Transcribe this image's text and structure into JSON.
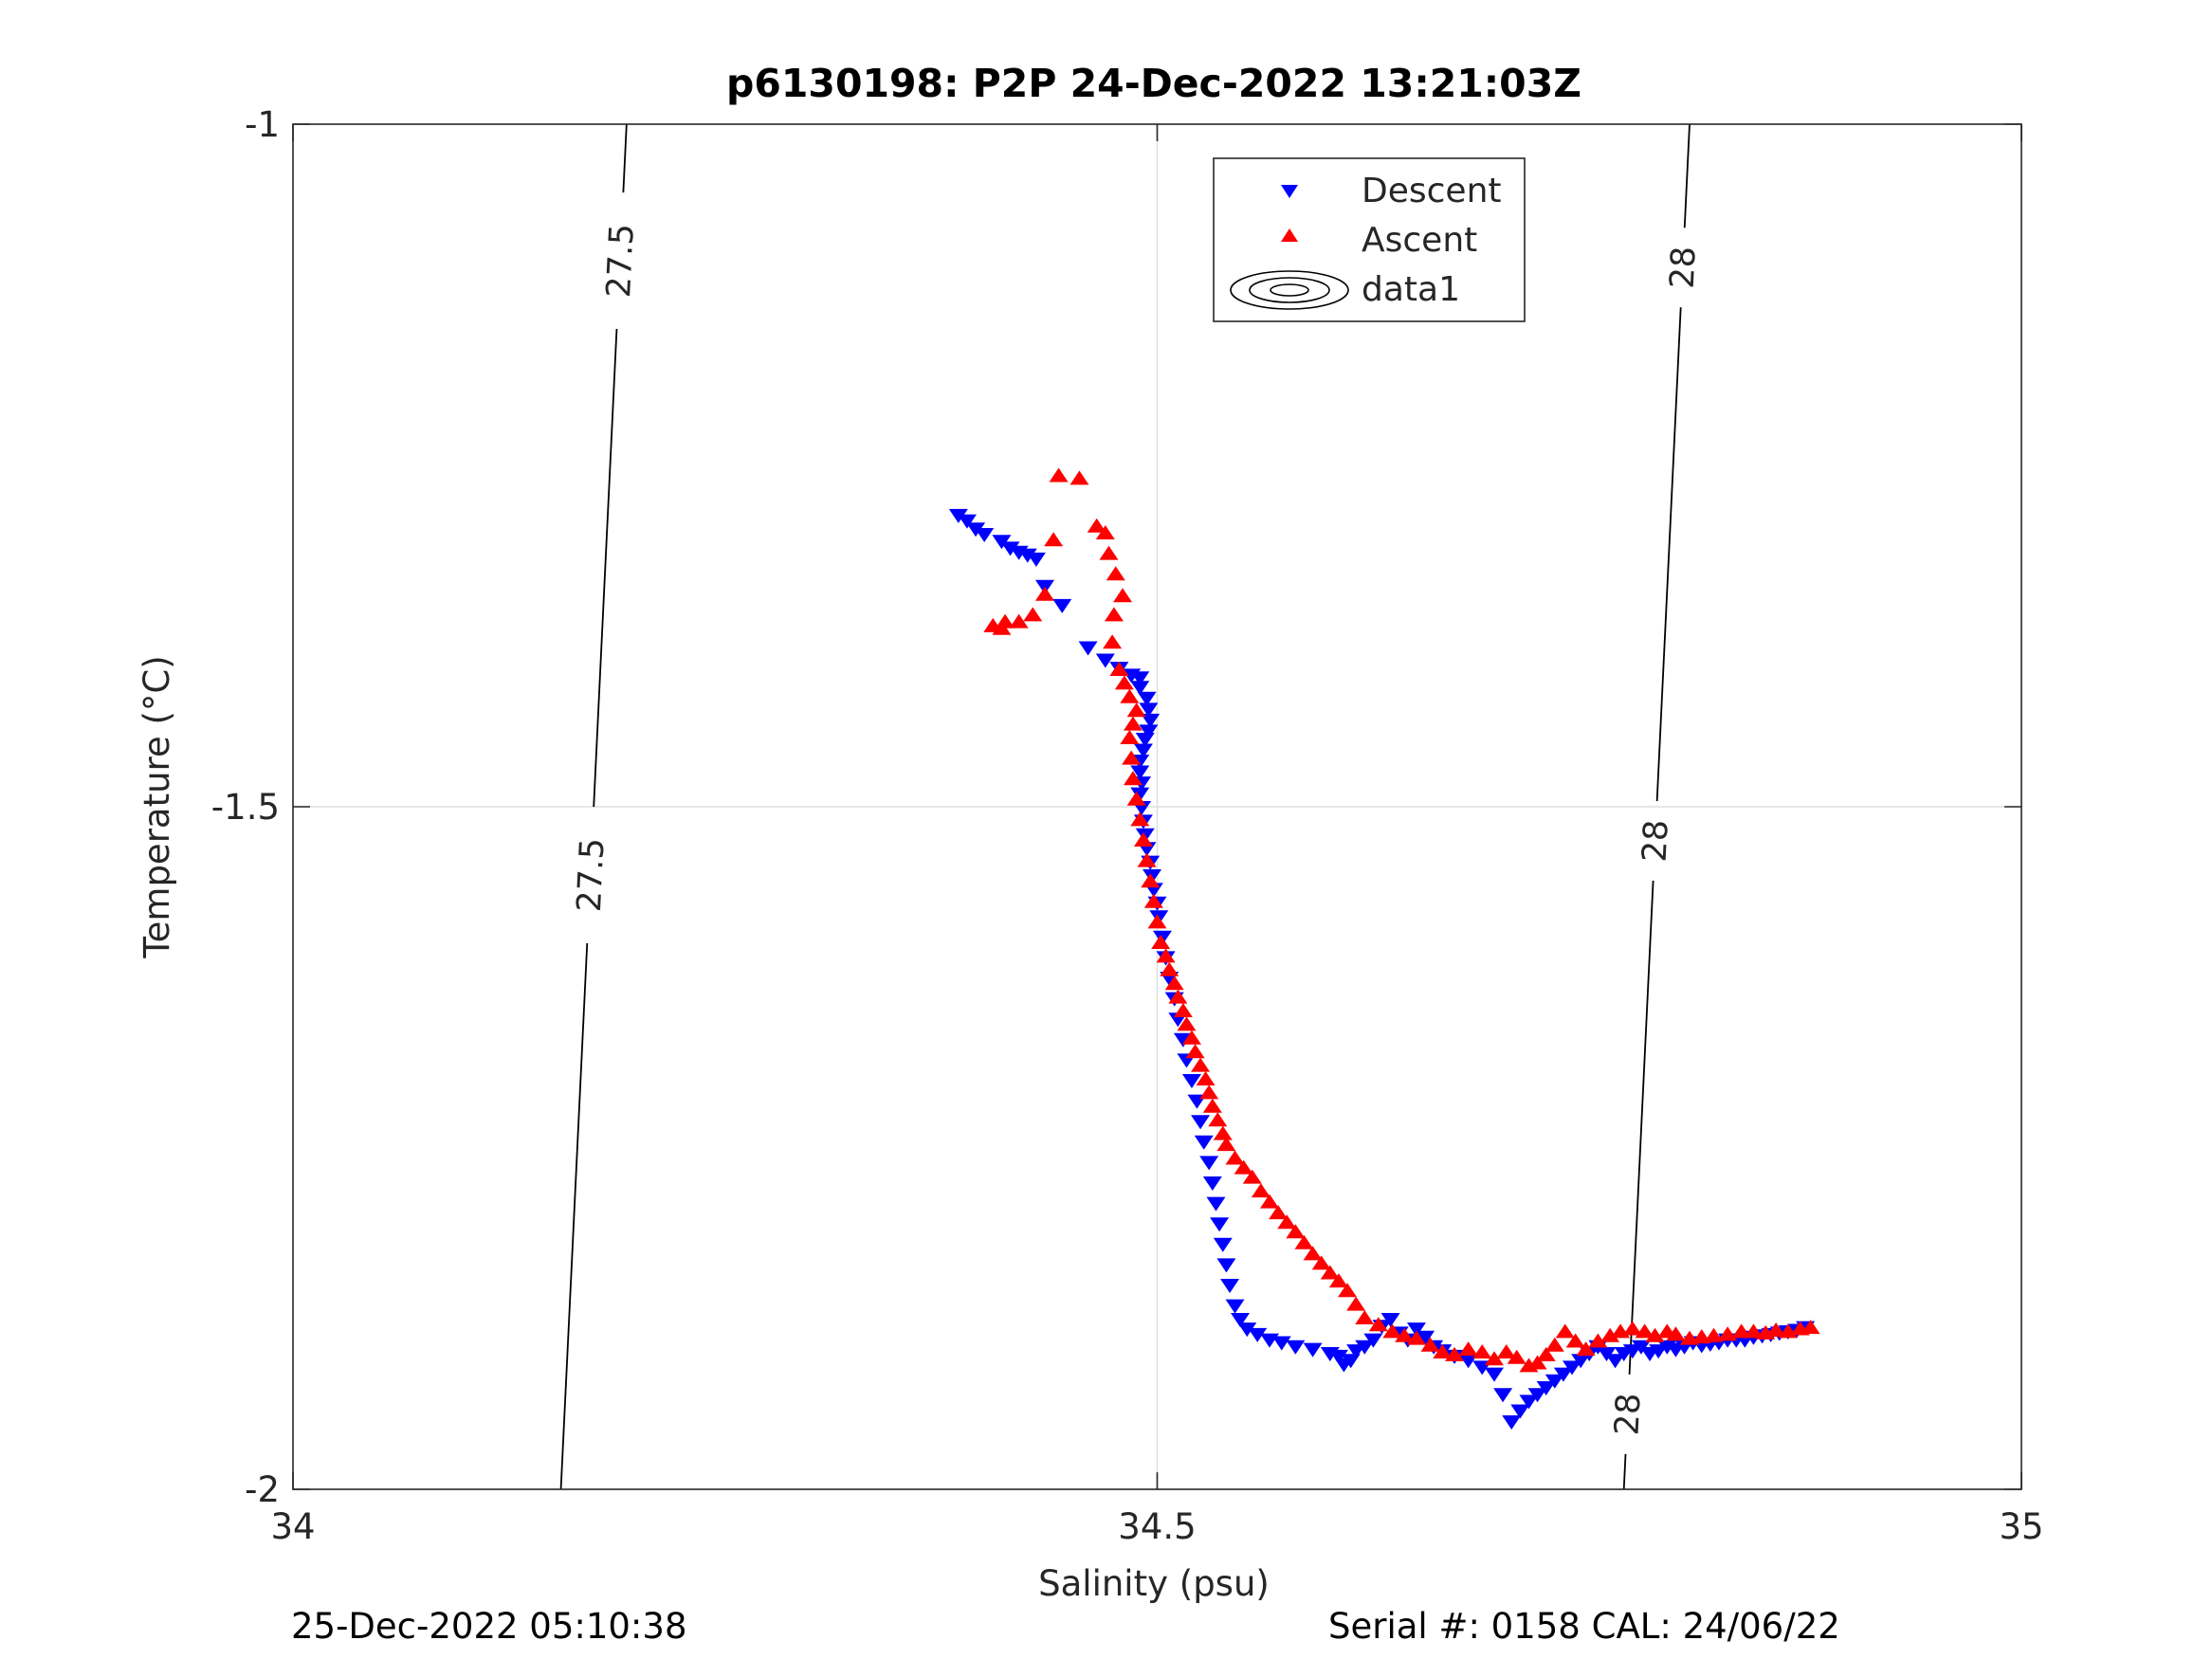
{
  "chart_data": {
    "type": "scatter",
    "title": "p6130198: P2P 24-Dec-2022 13:21:03Z",
    "xlabel": "Salinity (psu)",
    "ylabel": "Temperature (°C)",
    "xlim": [
      34,
      35
    ],
    "ylim": [
      -2,
      -1
    ],
    "xticks": [
      34,
      34.5,
      35
    ],
    "xtick_labels": [
      "34",
      "34.5",
      "35"
    ],
    "yticks": [
      -2,
      -1.5,
      -1
    ],
    "ytick_labels": [
      "-2",
      "-1.5",
      "-1"
    ],
    "grid": true,
    "legend_position": "top-center",
    "legend": [
      "Descent",
      "Ascent",
      "data1"
    ],
    "series": [
      {
        "name": "Descent",
        "marker": "triangle-down",
        "color": "#0000ff",
        "points": [
          [
            34.385,
            -1.286
          ],
          [
            34.39,
            -1.29
          ],
          [
            34.395,
            -1.296
          ],
          [
            34.4,
            -1.3
          ],
          [
            34.41,
            -1.305
          ],
          [
            34.415,
            -1.31
          ],
          [
            34.42,
            -1.313
          ],
          [
            34.425,
            -1.315
          ],
          [
            34.43,
            -1.318
          ],
          [
            34.435,
            -1.338
          ],
          [
            34.445,
            -1.352
          ],
          [
            34.46,
            -1.383
          ],
          [
            34.47,
            -1.392
          ],
          [
            34.478,
            -1.398
          ],
          [
            34.485,
            -1.403
          ],
          [
            34.49,
            -1.405
          ],
          [
            34.49,
            -1.412
          ],
          [
            34.494,
            -1.42
          ],
          [
            34.495,
            -1.428
          ],
          [
            34.496,
            -1.436
          ],
          [
            34.495,
            -1.444
          ],
          [
            34.493,
            -1.45
          ],
          [
            34.492,
            -1.458
          ],
          [
            34.49,
            -1.466
          ],
          [
            34.49,
            -1.474
          ],
          [
            34.491,
            -1.482
          ],
          [
            34.49,
            -1.49
          ],
          [
            34.491,
            -1.5
          ],
          [
            34.492,
            -1.51
          ],
          [
            34.493,
            -1.52
          ],
          [
            34.494,
            -1.53
          ],
          [
            34.496,
            -1.54
          ],
          [
            34.497,
            -1.55
          ],
          [
            34.498,
            -1.56
          ],
          [
            34.5,
            -1.57
          ],
          [
            34.501,
            -1.58
          ],
          [
            34.503,
            -1.595
          ],
          [
            34.505,
            -1.61
          ],
          [
            34.507,
            -1.625
          ],
          [
            34.51,
            -1.64
          ],
          [
            34.512,
            -1.655
          ],
          [
            34.515,
            -1.67
          ],
          [
            34.517,
            -1.685
          ],
          [
            34.52,
            -1.7
          ],
          [
            34.523,
            -1.715
          ],
          [
            34.525,
            -1.73
          ],
          [
            34.527,
            -1.745
          ],
          [
            34.53,
            -1.76
          ],
          [
            34.532,
            -1.775
          ],
          [
            34.534,
            -1.79
          ],
          [
            34.536,
            -1.805
          ],
          [
            34.538,
            -1.82
          ],
          [
            34.54,
            -1.835
          ],
          [
            34.542,
            -1.85
          ],
          [
            34.545,
            -1.865
          ],
          [
            34.548,
            -1.875
          ],
          [
            34.552,
            -1.882
          ],
          [
            34.558,
            -1.886
          ],
          [
            34.565,
            -1.89
          ],
          [
            34.572,
            -1.892
          ],
          [
            34.58,
            -1.895
          ],
          [
            34.59,
            -1.897
          ],
          [
            34.6,
            -1.9
          ],
          [
            34.605,
            -1.902
          ],
          [
            34.608,
            -1.908
          ],
          [
            34.612,
            -1.905
          ],
          [
            34.615,
            -1.898
          ],
          [
            34.62,
            -1.895
          ],
          [
            34.625,
            -1.89
          ],
          [
            34.63,
            -1.88
          ],
          [
            34.635,
            -1.875
          ],
          [
            34.64,
            -1.885
          ],
          [
            34.645,
            -1.89
          ],
          [
            34.65,
            -1.882
          ],
          [
            34.655,
            -1.888
          ],
          [
            34.66,
            -1.895
          ],
          [
            34.665,
            -1.898
          ],
          [
            34.672,
            -1.902
          ],
          [
            34.68,
            -1.905
          ],
          [
            34.688,
            -1.91
          ],
          [
            34.695,
            -1.915
          ],
          [
            34.7,
            -1.93
          ],
          [
            34.705,
            -1.95
          ],
          [
            34.71,
            -1.942
          ],
          [
            34.715,
            -1.935
          ],
          [
            34.72,
            -1.93
          ],
          [
            34.725,
            -1.925
          ],
          [
            34.73,
            -1.92
          ],
          [
            34.735,
            -1.915
          ],
          [
            34.74,
            -1.91
          ],
          [
            34.745,
            -1.905
          ],
          [
            34.75,
            -1.9
          ],
          [
            34.755,
            -1.895
          ],
          [
            34.76,
            -1.9
          ],
          [
            34.765,
            -1.905
          ],
          [
            34.77,
            -1.9
          ],
          [
            34.775,
            -1.898
          ],
          [
            34.78,
            -1.895
          ],
          [
            34.785,
            -1.9
          ],
          [
            34.79,
            -1.898
          ],
          [
            34.795,
            -1.895
          ],
          [
            34.8,
            -1.897
          ],
          [
            34.805,
            -1.895
          ],
          [
            34.81,
            -1.892
          ],
          [
            34.815,
            -1.894
          ],
          [
            34.82,
            -1.893
          ],
          [
            34.825,
            -1.892
          ],
          [
            34.83,
            -1.89
          ],
          [
            34.835,
            -1.89
          ],
          [
            34.84,
            -1.89
          ],
          [
            34.845,
            -1.888
          ],
          [
            34.85,
            -1.887
          ],
          [
            34.855,
            -1.886
          ],
          [
            34.86,
            -1.885
          ],
          [
            34.865,
            -1.884
          ],
          [
            34.87,
            -1.883
          ],
          [
            34.875,
            -1.881
          ]
        ]
      },
      {
        "name": "Ascent",
        "marker": "triangle-up",
        "color": "#ff0000",
        "points": [
          [
            34.878,
            -1.882
          ],
          [
            34.872,
            -1.883
          ],
          [
            34.865,
            -1.885
          ],
          [
            34.858,
            -1.884
          ],
          [
            34.852,
            -1.886
          ],
          [
            34.845,
            -1.885
          ],
          [
            34.838,
            -1.885
          ],
          [
            34.83,
            -1.887
          ],
          [
            34.822,
            -1.888
          ],
          [
            34.815,
            -1.889
          ],
          [
            34.808,
            -1.89
          ],
          [
            34.8,
            -1.887
          ],
          [
            34.795,
            -1.885
          ],
          [
            34.788,
            -1.888
          ],
          [
            34.782,
            -1.885
          ],
          [
            34.775,
            -1.883
          ],
          [
            34.768,
            -1.885
          ],
          [
            34.762,
            -1.888
          ],
          [
            34.755,
            -1.892
          ],
          [
            34.748,
            -1.898
          ],
          [
            34.742,
            -1.892
          ],
          [
            34.736,
            -1.885
          ],
          [
            34.73,
            -1.895
          ],
          [
            34.725,
            -1.902
          ],
          [
            34.72,
            -1.908
          ],
          [
            34.715,
            -1.91
          ],
          [
            34.708,
            -1.904
          ],
          [
            34.702,
            -1.9
          ],
          [
            34.695,
            -1.905
          ],
          [
            34.688,
            -1.9
          ],
          [
            34.68,
            -1.898
          ],
          [
            34.672,
            -1.902
          ],
          [
            34.665,
            -1.9
          ],
          [
            34.658,
            -1.895
          ],
          [
            34.65,
            -1.89
          ],
          [
            34.643,
            -1.888
          ],
          [
            34.636,
            -1.885
          ],
          [
            34.628,
            -1.88
          ],
          [
            34.62,
            -1.875
          ],
          [
            34.615,
            -1.865
          ],
          [
            34.61,
            -1.855
          ],
          [
            34.605,
            -1.848
          ],
          [
            34.6,
            -1.842
          ],
          [
            34.595,
            -1.835
          ],
          [
            34.59,
            -1.828
          ],
          [
            34.585,
            -1.82
          ],
          [
            34.58,
            -1.812
          ],
          [
            34.575,
            -1.805
          ],
          [
            34.57,
            -1.798
          ],
          [
            34.565,
            -1.79
          ],
          [
            34.56,
            -1.782
          ],
          [
            34.555,
            -1.772
          ],
          [
            34.55,
            -1.765
          ],
          [
            34.545,
            -1.758
          ],
          [
            34.54,
            -1.748
          ],
          [
            34.538,
            -1.74
          ],
          [
            34.535,
            -1.73
          ],
          [
            34.532,
            -1.72
          ],
          [
            34.53,
            -1.71
          ],
          [
            34.528,
            -1.7
          ],
          [
            34.525,
            -1.69
          ],
          [
            34.522,
            -1.68
          ],
          [
            34.52,
            -1.67
          ],
          [
            34.517,
            -1.66
          ],
          [
            34.515,
            -1.65
          ],
          [
            34.512,
            -1.64
          ],
          [
            34.51,
            -1.63
          ],
          [
            34.507,
            -1.62
          ],
          [
            34.505,
            -1.61
          ],
          [
            34.502,
            -1.6
          ],
          [
            34.5,
            -1.585
          ],
          [
            34.498,
            -1.57
          ],
          [
            34.496,
            -1.555
          ],
          [
            34.494,
            -1.54
          ],
          [
            34.492,
            -1.525
          ],
          [
            34.49,
            -1.51
          ],
          [
            34.488,
            -1.495
          ],
          [
            34.486,
            -1.48
          ],
          [
            34.485,
            -1.465
          ],
          [
            34.484,
            -1.45
          ],
          [
            34.486,
            -1.44
          ],
          [
            34.488,
            -1.43
          ],
          [
            34.484,
            -1.42
          ],
          [
            34.481,
            -1.41
          ],
          [
            34.478,
            -1.4
          ],
          [
            34.474,
            -1.38
          ],
          [
            34.475,
            -1.36
          ],
          [
            34.48,
            -1.346
          ],
          [
            34.476,
            -1.33
          ],
          [
            34.472,
            -1.315
          ],
          [
            34.47,
            -1.3
          ],
          [
            34.465,
            -1.295
          ],
          [
            34.455,
            -1.26
          ],
          [
            34.443,
            -1.258
          ],
          [
            34.44,
            -1.305
          ],
          [
            34.435,
            -1.345
          ],
          [
            34.428,
            -1.36
          ],
          [
            34.42,
            -1.365
          ],
          [
            34.412,
            -1.365
          ],
          [
            34.405,
            -1.368
          ],
          [
            34.41,
            -1.37
          ]
        ]
      }
    ],
    "contours": [
      {
        "label": "27.5",
        "points": [
          [
            34.155,
            -2.0
          ],
          [
            34.193,
            -1.0
          ]
        ],
        "label_positions": [
          -1.1,
          -1.55
        ]
      },
      {
        "label": "28",
        "points": [
          [
            34.77,
            -2.0
          ],
          [
            34.808,
            -1.0
          ]
        ],
        "label_positions": [
          -1.105,
          -1.525,
          -1.945
        ]
      }
    ]
  },
  "footer": {
    "left": "25-Dec-2022 05:10:38",
    "right": "Serial #: 0158  CAL: 24/06/22"
  },
  "colors": {
    "descent": "#0000ff",
    "ascent": "#ff0000",
    "grid": "#dfdfdf",
    "axes": "#262626"
  }
}
